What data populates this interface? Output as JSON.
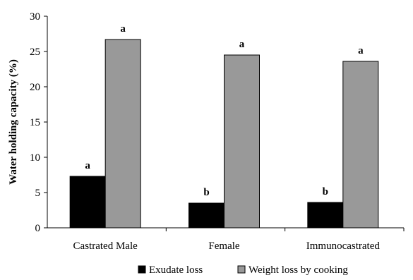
{
  "chart_data": {
    "type": "bar",
    "title": "",
    "xlabel": "",
    "ylabel": "Water holding capacity (%)",
    "ylim": [
      0,
      30
    ],
    "yticks": [
      "0",
      "5",
      "10",
      "15",
      "20",
      "25",
      "30"
    ],
    "categories": [
      "Castrated Male",
      "Female",
      "Immunocastrated"
    ],
    "grid": false,
    "legend_position": "bottom",
    "series": [
      {
        "name": "Exudate loss",
        "color": "#000000",
        "values": [
          7.3,
          3.5,
          3.6
        ],
        "labels": [
          "a",
          "b",
          "b"
        ]
      },
      {
        "name": "Weight loss by cooking",
        "color": "#999999",
        "values": [
          26.7,
          24.5,
          23.6
        ],
        "labels": [
          "a",
          "a",
          "a"
        ]
      }
    ]
  }
}
